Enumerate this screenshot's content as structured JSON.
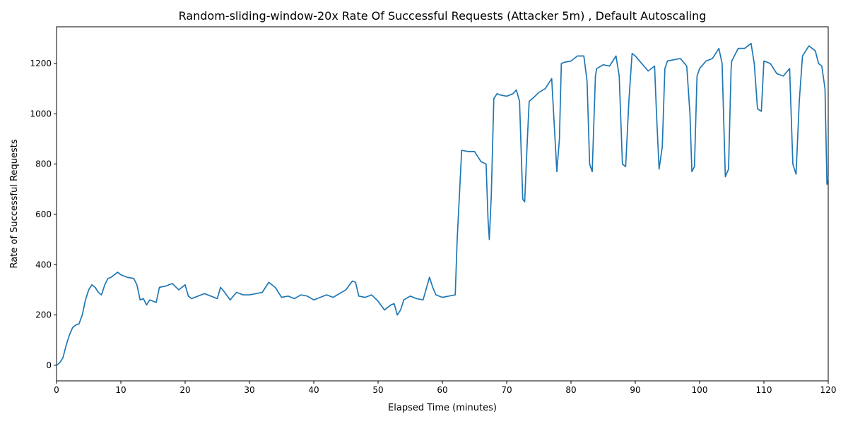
{
  "chart_data": {
    "type": "line",
    "title": "Random-sliding-window-20x Rate Of Successful Requests (Attacker 5m) , Default Autoscaling",
    "x_label": "Elapsed Time (minutes)",
    "y_label": "Rate of Successful Requests",
    "x": [
      0,
      0.5,
      1,
      1.5,
      2,
      2.5,
      3,
      3.5,
      4,
      4.5,
      5,
      5.5,
      6,
      6.5,
      7,
      7.5,
      8,
      8.5,
      9,
      9.5,
      10,
      11,
      12,
      12.5,
      13,
      13.5,
      14,
      14.5,
      15,
      15.5,
      16,
      17,
      18,
      19,
      20,
      20.5,
      21,
      22,
      23,
      24,
      25,
      25.5,
      26,
      27,
      28,
      29,
      30,
      31,
      32,
      33,
      34,
      35,
      36,
      37,
      38,
      39,
      40,
      41,
      42,
      43,
      44,
      45,
      46,
      46.5,
      47,
      48,
      49,
      50,
      51,
      52,
      52.5,
      53,
      53.5,
      54,
      55,
      56,
      57,
      58,
      58.5,
      59,
      60,
      61,
      62,
      62.3,
      62.7,
      63,
      64,
      65,
      66,
      66.8,
      67.1,
      67.3,
      67.6,
      68,
      68.5,
      69,
      70,
      71,
      71.5,
      72,
      72.5,
      72.8,
      73.2,
      73.5,
      74,
      75,
      76,
      77,
      77.5,
      77.8,
      78.2,
      78.5,
      79,
      80,
      81,
      82,
      82.5,
      82.9,
      83.3,
      83.8,
      84,
      85,
      86,
      87,
      87.5,
      88,
      88.5,
      89,
      89.5,
      90,
      91,
      92,
      93,
      93.3,
      93.7,
      94.2,
      94.6,
      95,
      96,
      97,
      98,
      98.5,
      98.8,
      99.2,
      99.6,
      100,
      101,
      102,
      103,
      103.5,
      104,
      104.5,
      104.9,
      105,
      106,
      107,
      108,
      108.5,
      109,
      109.6,
      110,
      111,
      112,
      113,
      114,
      114.5,
      115,
      115.5,
      116,
      117,
      118,
      118.5,
      119,
      119.5,
      119.8,
      120
    ],
    "series": [
      {
        "name": "Rate of Successful Requests",
        "color": "#1f77b4",
        "values": [
          0,
          10,
          30,
          80,
          120,
          150,
          160,
          165,
          200,
          260,
          300,
          320,
          310,
          290,
          280,
          320,
          345,
          350,
          360,
          370,
          360,
          350,
          345,
          320,
          260,
          265,
          240,
          260,
          255,
          250,
          310,
          315,
          325,
          300,
          320,
          275,
          265,
          275,
          285,
          275,
          265,
          310,
          295,
          260,
          290,
          280,
          280,
          285,
          290,
          330,
          310,
          270,
          275,
          265,
          280,
          275,
          260,
          270,
          280,
          270,
          285,
          300,
          335,
          330,
          275,
          270,
          280,
          255,
          220,
          240,
          245,
          200,
          220,
          260,
          275,
          265,
          260,
          350,
          310,
          280,
          270,
          275,
          280,
          500,
          700,
          855,
          850,
          850,
          810,
          800,
          580,
          500,
          670,
          1060,
          1080,
          1075,
          1070,
          1080,
          1095,
          1050,
          660,
          650,
          890,
          1050,
          1060,
          1085,
          1100,
          1140,
          910,
          770,
          900,
          1200,
          1205,
          1210,
          1230,
          1230,
          1130,
          800,
          770,
          1150,
          1180,
          1195,
          1190,
          1230,
          1150,
          800,
          790,
          1050,
          1240,
          1230,
          1200,
          1170,
          1190,
          1000,
          780,
          870,
          1180,
          1210,
          1215,
          1220,
          1190,
          1000,
          770,
          790,
          1150,
          1180,
          1210,
          1220,
          1260,
          1200,
          750,
          780,
          1180,
          1210,
          1260,
          1260,
          1280,
          1200,
          1020,
          1010,
          1210,
          1200,
          1160,
          1150,
          1180,
          800,
          760,
          1050,
          1230,
          1270,
          1250,
          1200,
          1190,
          1100,
          720,
          750
        ]
      }
    ],
    "xlim": [
      0,
      120
    ],
    "xticks": [
      0,
      10,
      20,
      30,
      40,
      50,
      60,
      70,
      80,
      90,
      100,
      110,
      120
    ],
    "ylim": [
      -62,
      1346
    ],
    "yticks": [
      0,
      200,
      400,
      600,
      800,
      1000,
      1200
    ]
  }
}
